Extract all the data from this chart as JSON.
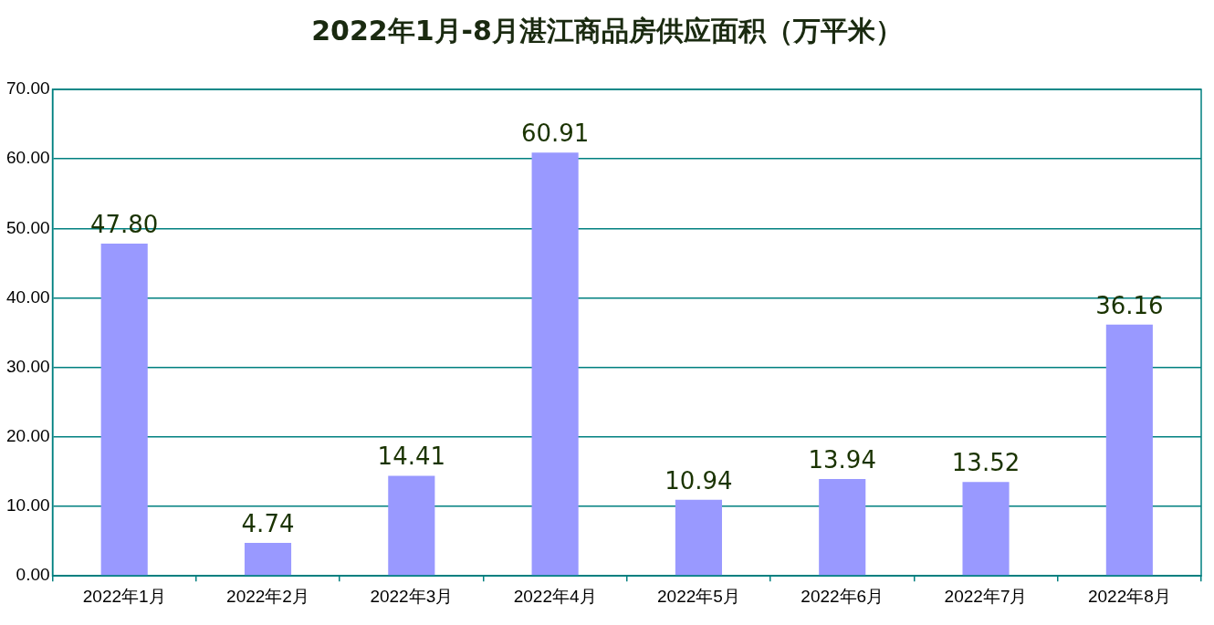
{
  "chart_data": {
    "type": "bar",
    "title": "2022年1月-8月湛江商品房供应面积（万平米）",
    "categories": [
      "2022年1月",
      "2022年2月",
      "2022年3月",
      "2022年4月",
      "2022年5月",
      "2022年6月",
      "2022年7月",
      "2022年8月"
    ],
    "values": [
      47.8,
      4.74,
      14.41,
      60.91,
      10.94,
      13.94,
      13.52,
      36.16
    ],
    "value_labels": [
      "47.80",
      "4.74",
      "14.41",
      "60.91",
      "10.94",
      "13.94",
      "13.52",
      "36.16"
    ],
    "color": "#9999ff",
    "ylim": [
      0,
      70
    ],
    "yticks": [
      {
        "value": 0,
        "label": "0.00"
      },
      {
        "value": 10,
        "label": "10.00"
      },
      {
        "value": 20,
        "label": "20.00"
      },
      {
        "value": 30,
        "label": "30.00"
      },
      {
        "value": 40,
        "label": "40.00"
      },
      {
        "value": 50,
        "label": "50.00"
      },
      {
        "value": 60,
        "label": "60.00"
      },
      {
        "value": 70,
        "label": "70.00"
      }
    ],
    "grid": "y",
    "legend": false
  }
}
